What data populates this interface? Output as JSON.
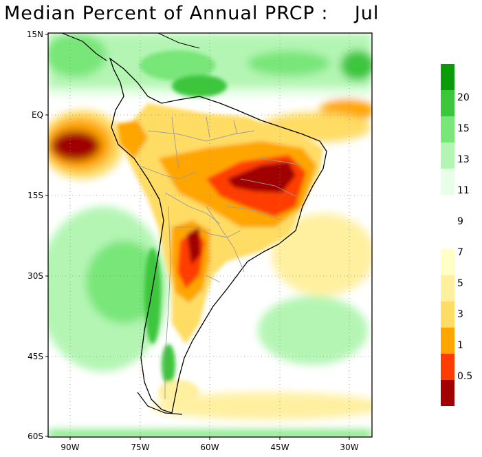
{
  "title": "Median Percent of Annual PRCP :    Jul",
  "lat_labels": [
    "15N",
    "EQ",
    "15S",
    "30S",
    "45S",
    "60S"
  ],
  "lon_labels": [
    "90W",
    "75W",
    "60W",
    "45W",
    "30W"
  ],
  "legend": {
    "upper_labels": [
      "20",
      "15",
      "13",
      "11",
      "9"
    ],
    "lower_labels": [
      "7",
      "5",
      "3",
      "1",
      "0.5"
    ],
    "upper_colors": [
      "#0a9a0a",
      "#3cc63c",
      "#78e678",
      "#b4f5b4",
      "#e6ffe6",
      "#ffffff"
    ],
    "lower_colors": [
      "#ffffc8",
      "#fff0a0",
      "#ffdc64",
      "#ffa500",
      "#ff3c00",
      "#a00000"
    ]
  },
  "colors": {
    "land_outline": "#000000",
    "borders": "#9a9a9a",
    "grid": "#8c8c8c"
  }
}
